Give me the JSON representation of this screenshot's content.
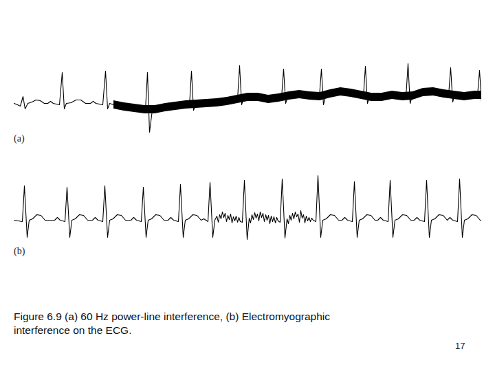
{
  "chart_data": [
    {
      "type": "line",
      "label": "(a)",
      "color": "#000000",
      "tick_labels": false,
      "xlim": [
        20,
        700
      ],
      "ylim": [
        -55,
        70
      ],
      "x": [
        20,
        25,
        29,
        33,
        36,
        40,
        46,
        52,
        58,
        64,
        69,
        73,
        77,
        86,
        90,
        93,
        96,
        103,
        110,
        117,
        124,
        131,
        135,
        139,
        149,
        153,
        156,
        159,
        165,
        180,
        195,
        205,
        211,
        214,
        217,
        221,
        230,
        240,
        250,
        262,
        270,
        275,
        278,
        281,
        284,
        295,
        310,
        325,
        338,
        345,
        348,
        351,
        354,
        365,
        380,
        395,
        405,
        409,
        412,
        415,
        418,
        430,
        445,
        460,
        464,
        467,
        470,
        473,
        485,
        500,
        515,
        525,
        528,
        531,
        534,
        537,
        550,
        565,
        580,
        588,
        590,
        593,
        596,
        599,
        612,
        625,
        640,
        650,
        652,
        655,
        658,
        661,
        675,
        690,
        694,
        697,
        700
      ],
      "values": [
        0,
        -2,
        -4,
        10,
        -8,
        0,
        2,
        5,
        4,
        0,
        0,
        3,
        0,
        -2,
        45,
        -8,
        0,
        1,
        5,
        5,
        0,
        0,
        3,
        0,
        -2,
        47,
        -8,
        0,
        -2,
        -5,
        -7,
        -8,
        -10,
        45,
        -42,
        -10,
        -8,
        -6,
        -5,
        -3,
        -2,
        -4,
        47,
        -10,
        -3,
        0,
        0,
        2,
        5,
        6,
        55,
        -2,
        8,
        10,
        8,
        5,
        8,
        8,
        50,
        0,
        10,
        13,
        12,
        10,
        9,
        50,
        -2,
        10,
        16,
        17,
        14,
        12,
        9,
        54,
        0,
        10,
        8,
        12,
        11,
        10,
        9,
        58,
        0,
        10,
        15,
        17,
        15,
        13,
        12,
        52,
        2,
        13,
        10,
        12,
        11,
        48,
        2
      ],
      "noise_x": [
        165,
        180,
        195,
        210,
        225,
        240,
        255,
        270,
        285,
        300,
        315,
        330,
        345,
        360,
        375,
        390,
        405,
        420,
        435,
        450,
        465,
        480,
        495,
        510,
        525,
        540,
        555,
        570,
        585,
        600,
        615,
        630,
        645,
        660,
        675,
        690,
        700
      ],
      "noise_lower": [
        -8,
        -11,
        -13,
        -15,
        -15,
        -12,
        -10,
        -8,
        -7,
        -6,
        -5,
        -3,
        0,
        3,
        3,
        0,
        2,
        5,
        7,
        5,
        4,
        8,
        11,
        9,
        6,
        3,
        3,
        6,
        4,
        5,
        10,
        11,
        8,
        6,
        4,
        6,
        6
      ],
      "noise_upper": [
        4,
        1,
        -1,
        -3,
        -3,
        0,
        2,
        4,
        5,
        6,
        7,
        9,
        12,
        15,
        15,
        12,
        14,
        17,
        19,
        17,
        16,
        20,
        23,
        21,
        18,
        15,
        15,
        18,
        16,
        17,
        22,
        23,
        20,
        18,
        16,
        18,
        18
      ]
    },
    {
      "type": "line",
      "label": "(b)",
      "color": "#000000",
      "tick_labels": false,
      "xlim": [
        20,
        700
      ],
      "ylim": [
        -50,
        75
      ],
      "x": [
        20,
        32,
        35,
        39,
        42,
        47,
        53,
        59,
        65,
        79,
        83,
        87,
        94,
        97,
        101,
        104,
        109,
        115,
        121,
        127,
        134,
        138,
        142,
        149,
        152,
        156,
        159,
        164,
        170,
        176,
        182,
        190,
        194,
        198,
        205,
        208,
        212,
        215,
        220,
        226,
        232,
        238,
        244,
        248,
        252,
        259,
        262,
        266,
        269,
        274,
        280,
        286,
        292,
        296,
        299,
        302,
        305,
        309,
        312,
        315,
        317,
        319,
        321,
        323,
        325,
        327,
        329,
        331,
        333,
        335,
        337,
        339,
        341,
        343,
        345,
        347,
        349,
        352,
        355,
        359,
        362,
        364,
        366,
        368,
        370,
        372,
        374,
        376,
        378,
        380,
        382,
        384,
        386,
        388,
        390,
        392,
        394,
        396,
        398,
        400,
        402,
        404,
        407,
        410,
        414,
        417,
        419,
        421,
        423,
        425,
        427,
        429,
        431,
        433,
        435,
        437,
        439,
        441,
        443,
        445,
        447,
        449,
        451,
        453,
        455,
        459,
        462,
        466,
        469,
        474,
        480,
        486,
        492,
        497,
        501,
        505,
        512,
        515,
        519,
        522,
        527,
        533,
        539,
        545,
        549,
        553,
        557,
        564,
        567,
        571,
        574,
        579,
        585,
        591,
        597,
        602,
        606,
        610,
        617,
        620,
        624,
        627,
        632,
        638,
        644,
        650,
        654,
        658,
        665,
        668,
        672,
        675,
        680,
        686,
        692,
        698,
        700
      ],
      "values": [
        0,
        -2,
        50,
        -25,
        0,
        2,
        8,
        7,
        0,
        0,
        4,
        0,
        -2,
        48,
        -25,
        0,
        2,
        8,
        7,
        0,
        0,
        4,
        0,
        -2,
        50,
        -25,
        0,
        2,
        8,
        7,
        0,
        0,
        4,
        0,
        -2,
        48,
        -25,
        0,
        2,
        8,
        7,
        0,
        0,
        4,
        0,
        -2,
        52,
        -25,
        0,
        2,
        8,
        7,
        0,
        2,
        0,
        -2,
        55,
        -25,
        0,
        6,
        -3,
        8,
        2,
        12,
        4,
        10,
        -2,
        7,
        1,
        9,
        -4,
        5,
        -1,
        6,
        -3,
        4,
        -2,
        -3,
        58,
        -28,
        3,
        -4,
        8,
        1,
        11,
        3,
        9,
        -1,
        12,
        4,
        10,
        -2,
        8,
        0,
        7,
        -5,
        6,
        -2,
        5,
        -4,
        4,
        -1,
        -3,
        60,
        -26,
        2,
        -5,
        7,
        0,
        10,
        2,
        12,
        5,
        9,
        -3,
        14,
        3,
        8,
        -4,
        6,
        -1,
        4,
        -2,
        3,
        0,
        -2,
        65,
        -25,
        0,
        2,
        8,
        7,
        0,
        0,
        4,
        0,
        -2,
        56,
        -25,
        0,
        2,
        8,
        7,
        0,
        0,
        4,
        0,
        -2,
        58,
        -25,
        0,
        2,
        8,
        7,
        0,
        0,
        4,
        0,
        -2,
        58,
        -25,
        0,
        2,
        8,
        7,
        0,
        4,
        0,
        -2,
        60,
        -25,
        0,
        2,
        8,
        7,
        0,
        0
      ]
    }
  ],
  "caption": [
    "Figure 6.9 (a) 60 Hz power-line interference, (b) Electromyographic",
    "interference on the ECG."
  ],
  "page_number": 17
}
